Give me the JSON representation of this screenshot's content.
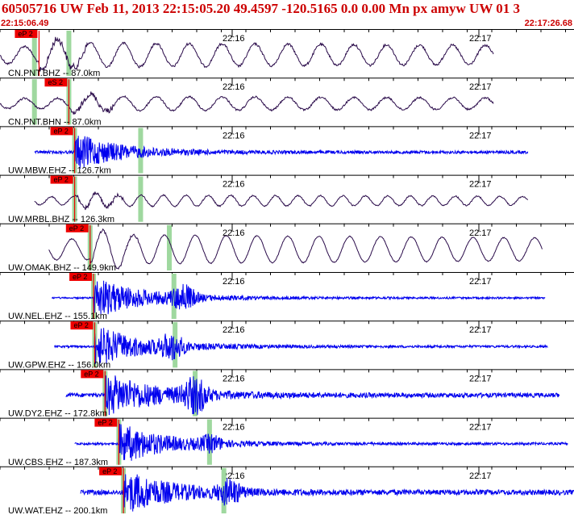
{
  "header": {
    "title": "60505716 UW Feb 11, 2013 22:15:05.20   49.4597 -120.5165  0.0 0.00 Mn px amyw UW 01   3",
    "start_time": "22:15:06.49",
    "end_time": "22:17:26.68"
  },
  "chart_data": {
    "type": "line",
    "x_axis": {
      "start": "22:15:06.49",
      "end": "22:17:26.68",
      "tick_labels": [
        "22:16",
        "22:17"
      ]
    },
    "colors": {
      "long_period": "#2a0b4a",
      "short_period": "#0000ee",
      "pick": "#ee0000",
      "marker": "#9fd89f",
      "tick": "#000000"
    },
    "traces": [
      {
        "station": "CN.PNT.BHZ -- 87.0km",
        "pick": "eP 2",
        "band": "long",
        "pick_t": 0.068,
        "markers": [
          0.06,
          0.12
        ],
        "start": 0.0,
        "end": 0.86,
        "cycles": 15,
        "noise": 0.15,
        "amp": 0.75,
        "burst": 0.2,
        "event2": null
      },
      {
        "station": "CN.PNT.BHN -- 87.0km",
        "pick": "eS 2",
        "band": "long",
        "pick_t": 0.12,
        "markers": [
          0.06,
          0.12
        ],
        "start": 0.0,
        "end": 0.86,
        "cycles": 15,
        "noise": 0.2,
        "amp": 0.45,
        "burst": 0.2,
        "event2": null
      },
      {
        "station": "UW.MBW.EHZ -- 126.7km",
        "pick": "eP 2",
        "band": "short",
        "pick_t": 0.13,
        "markers": [
          0.13,
          0.245
        ],
        "start": 0.06,
        "end": 0.92,
        "cycles": 0,
        "noise": 0.08,
        "amp": 0.85,
        "burst": 0.2,
        "event2": null
      },
      {
        "station": "UW.MRBL.BHZ -- 126.3km",
        "pick": "eP 2",
        "band": "long",
        "pick_t": 0.13,
        "markers": [
          0.13,
          0.245
        ],
        "start": 0.06,
        "end": 0.92,
        "cycles": 22,
        "noise": 0.18,
        "amp": 0.35,
        "burst": 0.2,
        "event2": null
      },
      {
        "station": "UW.OMAK.BHZ -- 149.9km",
        "pick": "eP 2",
        "band": "long",
        "pick_t": 0.157,
        "markers": [
          0.157,
          0.295
        ],
        "start": 0.085,
        "end": 0.945,
        "cycles": 16,
        "noise": 0.05,
        "amp": 0.9,
        "burst": 0.2,
        "event2": null
      },
      {
        "station": "UW.NEL.EHZ -- 155.1km",
        "pick": "eP 2",
        "band": "short",
        "pick_t": 0.163,
        "markers": [
          0.163,
          0.303
        ],
        "start": 0.09,
        "end": 0.95,
        "cycles": 0,
        "noise": 0.04,
        "amp": 0.95,
        "burst": 0.55,
        "event2": 0.32
      },
      {
        "station": "UW.GPW.EHZ -- 156.0km",
        "pick": "eP 2",
        "band": "short",
        "pick_t": 0.165,
        "markers": [
          0.165,
          0.305
        ],
        "start": 0.095,
        "end": 0.955,
        "cycles": 0,
        "noise": 0.05,
        "amp": 0.95,
        "burst": 0.5,
        "event2": 0.3
      },
      {
        "station": "UW.DY2.EHZ -- 172.8km",
        "pick": "eP 2",
        "band": "short",
        "pick_t": 0.183,
        "markers": [
          0.183,
          0.34
        ],
        "start": 0.115,
        "end": 0.975,
        "cycles": 0,
        "noise": 0.1,
        "amp": 0.95,
        "burst": 0.8,
        "event2": 0.34
      },
      {
        "station": "UW.CBS.EHZ -- 187.3km",
        "pick": "eP 2",
        "band": "short",
        "pick_t": 0.207,
        "markers": [
          0.207,
          0.365
        ],
        "start": 0.13,
        "end": 0.99,
        "cycles": 0,
        "noise": 0.06,
        "amp": 0.95,
        "burst": 0.3,
        "event2": 0.368
      },
      {
        "station": "UW.WAT.EHZ -- 200.1km",
        "pick": "eP 2",
        "band": "short",
        "pick_t": 0.215,
        "markers": [
          0.215,
          0.39
        ],
        "start": 0.14,
        "end": 1.0,
        "cycles": 0,
        "noise": 0.12,
        "amp": 0.95,
        "burst": 0.5,
        "event2": 0.4
      }
    ]
  }
}
